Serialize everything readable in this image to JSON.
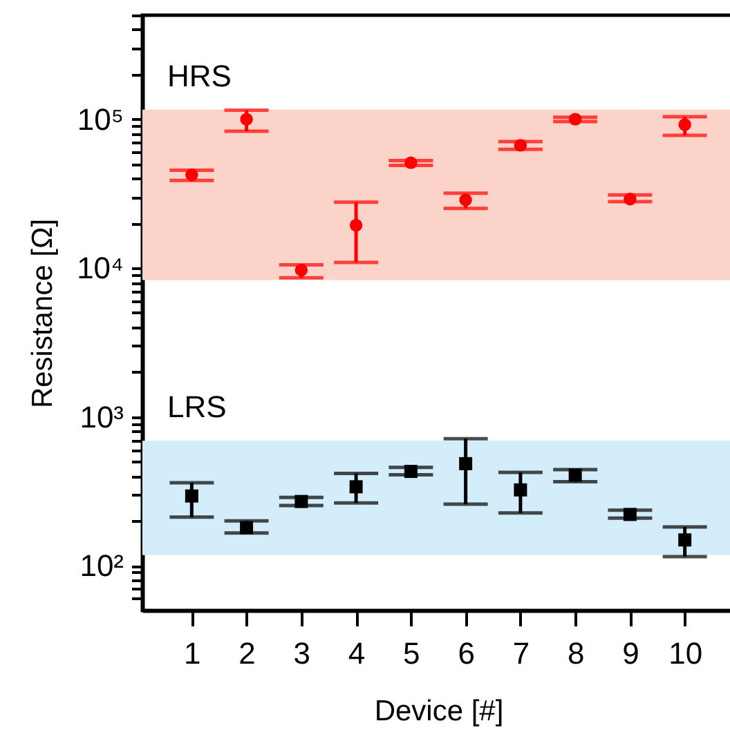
{
  "chart_data": {
    "type": "scatter",
    "xlabel": "Device [#]",
    "ylabel": "Resistance [Ω]",
    "x": [
      1,
      2,
      3,
      4,
      5,
      6,
      7,
      8,
      9,
      10
    ],
    "series": [
      {
        "color": "#ff0000",
        "marker": "circle",
        "values": [
          42300,
          100000,
          9700,
          19400,
          51000,
          28700,
          66800,
          100000,
          29100,
          92000
        ],
        "errors": [
          [
            38800,
            45400
          ],
          [
            83000,
            115000
          ],
          [
            8600,
            10500
          ],
          [
            10900,
            27700
          ],
          [
            48900,
            52800
          ],
          [
            25200,
            31800
          ],
          [
            62700,
            70800
          ],
          [
            96500,
            103000
          ],
          [
            27900,
            31000
          ],
          [
            78000,
            104000
          ]
        ]
      },
      {
        "color": "#000000",
        "marker": "square",
        "values": [
          294,
          180,
          270,
          339,
          430,
          485,
          323,
          406,
          221,
          149
        ],
        "errors": [
          [
            212,
            361
          ],
          [
            166,
            200
          ],
          [
            254,
            288
          ],
          [
            264,
            417
          ],
          [
            408,
            458
          ],
          [
            259,
            713
          ],
          [
            226,
            424
          ],
          [
            367,
            442
          ],
          [
            209,
            236
          ],
          [
            115,
            182
          ]
        ]
      }
    ],
    "bands": [
      {
        "axis": "y",
        "from": 8300,
        "to": 116000,
        "label": "HRS",
        "color": "#fbd3c9"
      },
      {
        "axis": "y",
        "from": 118,
        "to": 690,
        "label": "LRS",
        "color": "#d4edfa"
      }
    ],
    "log": "y",
    "grid": false,
    "xlim": [
      0.1,
      10.9
    ],
    "xticks": [
      1,
      2,
      3,
      4,
      5,
      6,
      7,
      8,
      9,
      10
    ],
    "ylim": [
      50,
      500000
    ],
    "yticks": [
      {
        "value": 60,
        "label": null
      },
      {
        "value": 70,
        "label": null
      },
      {
        "value": 80,
        "label": null
      },
      {
        "value": 90,
        "label": null
      },
      {
        "value": 100,
        "label": "10²"
      },
      {
        "value": 200,
        "label": null
      },
      {
        "value": 300,
        "label": null
      },
      {
        "value": 400,
        "label": null
      },
      {
        "value": 500,
        "label": null
      },
      {
        "value": 600,
        "label": null
      },
      {
        "value": 700,
        "label": null
      },
      {
        "value": 800,
        "label": null
      },
      {
        "value": 900,
        "label": null
      },
      {
        "value": 1000,
        "label": "10³"
      },
      {
        "value": 2000,
        "label": null
      },
      {
        "value": 3000,
        "label": null
      },
      {
        "value": 4000,
        "label": null
      },
      {
        "value": 5000,
        "label": null
      },
      {
        "value": 6000,
        "label": null
      },
      {
        "value": 7000,
        "label": null
      },
      {
        "value": 8000,
        "label": null
      },
      {
        "value": 9000,
        "label": null
      },
      {
        "value": 10000,
        "label": "10⁴"
      },
      {
        "value": 20000,
        "label": null
      },
      {
        "value": 30000,
        "label": null
      },
      {
        "value": 40000,
        "label": null
      },
      {
        "value": 50000,
        "label": null
      },
      {
        "value": 60000,
        "label": null
      },
      {
        "value": 70000,
        "label": null
      },
      {
        "value": 80000,
        "label": null
      },
      {
        "value": 90000,
        "label": null
      },
      {
        "value": 100000,
        "label": "10⁵"
      },
      {
        "value": 200000,
        "label": null
      },
      {
        "value": 300000,
        "label": null
      },
      {
        "value": 400000,
        "label": null
      },
      {
        "value": 500000,
        "label": null
      }
    ]
  }
}
